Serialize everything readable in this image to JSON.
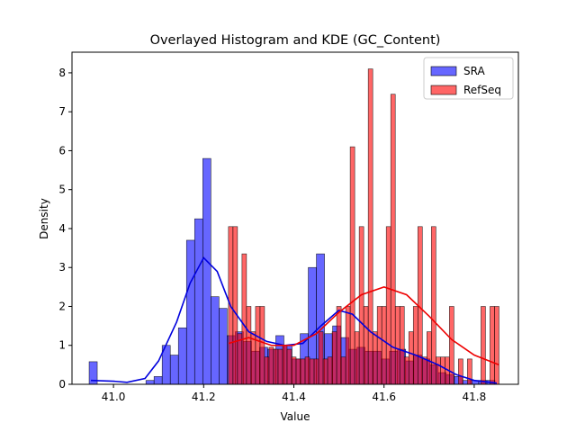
{
  "chart_data": {
    "type": "histogram",
    "title": "Overlayed Histogram and KDE (GC_Content)",
    "x_label": "Value",
    "y_label": "Density",
    "xlim": [
      40.908,
      41.898
    ],
    "ylim": [
      0,
      8.53
    ],
    "xticks": [
      {
        "value": 41.0,
        "label": "41.0"
      },
      41.2,
      41.4,
      41.6,
      41.8
    ],
    "yticks": [
      0,
      1,
      2,
      3,
      4,
      5,
      6,
      7,
      8
    ],
    "legend": "upper right",
    "series": [
      {
        "name": "SRA",
        "color": "#0000ff",
        "kde_color": "#0000dd",
        "bins": [
          40.946,
          40.964,
          40.982,
          41.0,
          41.018,
          41.036,
          41.054,
          41.072,
          41.09,
          41.108,
          41.126,
          41.144,
          41.162,
          41.18,
          41.198,
          41.216,
          41.234,
          41.252,
          41.27,
          41.288,
          41.306,
          41.324,
          41.342,
          41.36,
          41.378,
          41.396,
          41.414,
          41.432,
          41.45,
          41.468,
          41.486,
          41.504,
          41.522,
          41.54,
          41.558,
          41.576,
          41.594,
          41.612,
          41.63,
          41.648,
          41.666,
          41.684,
          41.702,
          41.72,
          41.738,
          41.756,
          41.774,
          41.792,
          41.81,
          41.828,
          41.846
        ],
        "values": [
          0.58,
          0,
          0,
          0,
          0,
          0,
          0,
          0.1,
          0.2,
          1.0,
          0.75,
          1.45,
          3.7,
          4.25,
          5.8,
          2.25,
          1.95,
          1.25,
          1.35,
          1.1,
          0.85,
          0.95,
          0.9,
          1.25,
          1.0,
          0.65,
          1.3,
          3.0,
          3.35,
          1.3,
          1.5,
          1.2,
          0.9,
          0.95,
          0.85,
          0.85,
          0.65,
          0.85,
          0.9,
          0.6,
          0.75,
          0.65,
          0.5,
          0.3,
          0.25,
          0.2,
          0.1,
          0.1,
          0.1,
          0.1
        ],
        "kde": {
          "x": [
            40.95,
            41.0,
            41.03,
            41.07,
            41.1,
            41.14,
            41.17,
            41.2,
            41.23,
            41.26,
            41.3,
            41.34,
            41.38,
            41.42,
            41.46,
            41.5,
            41.53,
            41.57,
            41.62,
            41.67,
            41.72,
            41.76,
            41.8,
            41.85
          ],
          "values": [
            0.1,
            0.08,
            0.05,
            0.15,
            0.6,
            1.6,
            2.6,
            3.25,
            2.9,
            2.0,
            1.35,
            1.1,
            1.0,
            1.05,
            1.5,
            1.9,
            1.8,
            1.35,
            0.95,
            0.75,
            0.5,
            0.25,
            0.1,
            0.03
          ]
        }
      },
      {
        "name": "RefSeq",
        "color": "#ff0000",
        "kde_color": "#ee0000",
        "bins": [
          41.255,
          41.265,
          41.275,
          41.285,
          41.295,
          41.305,
          41.315,
          41.325,
          41.335,
          41.345,
          41.355,
          41.365,
          41.375,
          41.385,
          41.395,
          41.405,
          41.415,
          41.425,
          41.435,
          41.445,
          41.455,
          41.465,
          41.475,
          41.485,
          41.495,
          41.505,
          41.515,
          41.525,
          41.535,
          41.545,
          41.555,
          41.565,
          41.575,
          41.585,
          41.595,
          41.605,
          41.615,
          41.625,
          41.635,
          41.645,
          41.655,
          41.665,
          41.675,
          41.685,
          41.695,
          41.705,
          41.715,
          41.725,
          41.735,
          41.745,
          41.755,
          41.765,
          41.775,
          41.785,
          41.795,
          41.805,
          41.815,
          41.825,
          41.835,
          41.845,
          41.855
        ],
        "values": [
          4.05,
          4.05,
          1.3,
          3.35,
          2.0,
          1.35,
          2.0,
          2.0,
          0.7,
          0.95,
          0.9,
          0.9,
          1.0,
          0.9,
          0.7,
          0.65,
          0.65,
          0.7,
          0.65,
          0.65,
          1.35,
          0.65,
          0.7,
          1.35,
          2.0,
          0.7,
          2.0,
          6.1,
          1.35,
          4.05,
          2.0,
          8.1,
          1.35,
          2.0,
          2.0,
          4.05,
          7.45,
          2.0,
          2.0,
          0.7,
          1.35,
          2.0,
          4.05,
          0.7,
          1.35,
          4.05,
          0.7,
          0.7,
          0.7,
          2.0,
          0,
          0.65,
          0,
          0.65,
          0,
          0,
          2.0,
          0,
          2.0,
          2.0
        ],
        "kde": {
          "x": [
            41.255,
            41.3,
            41.35,
            41.4,
            41.45,
            41.5,
            41.55,
            41.6,
            41.65,
            41.7,
            41.75,
            41.8,
            41.855
          ],
          "values": [
            1.05,
            1.2,
            1.0,
            1.0,
            1.3,
            1.85,
            2.3,
            2.5,
            2.3,
            1.75,
            1.15,
            0.75,
            0.5
          ]
        }
      }
    ]
  }
}
